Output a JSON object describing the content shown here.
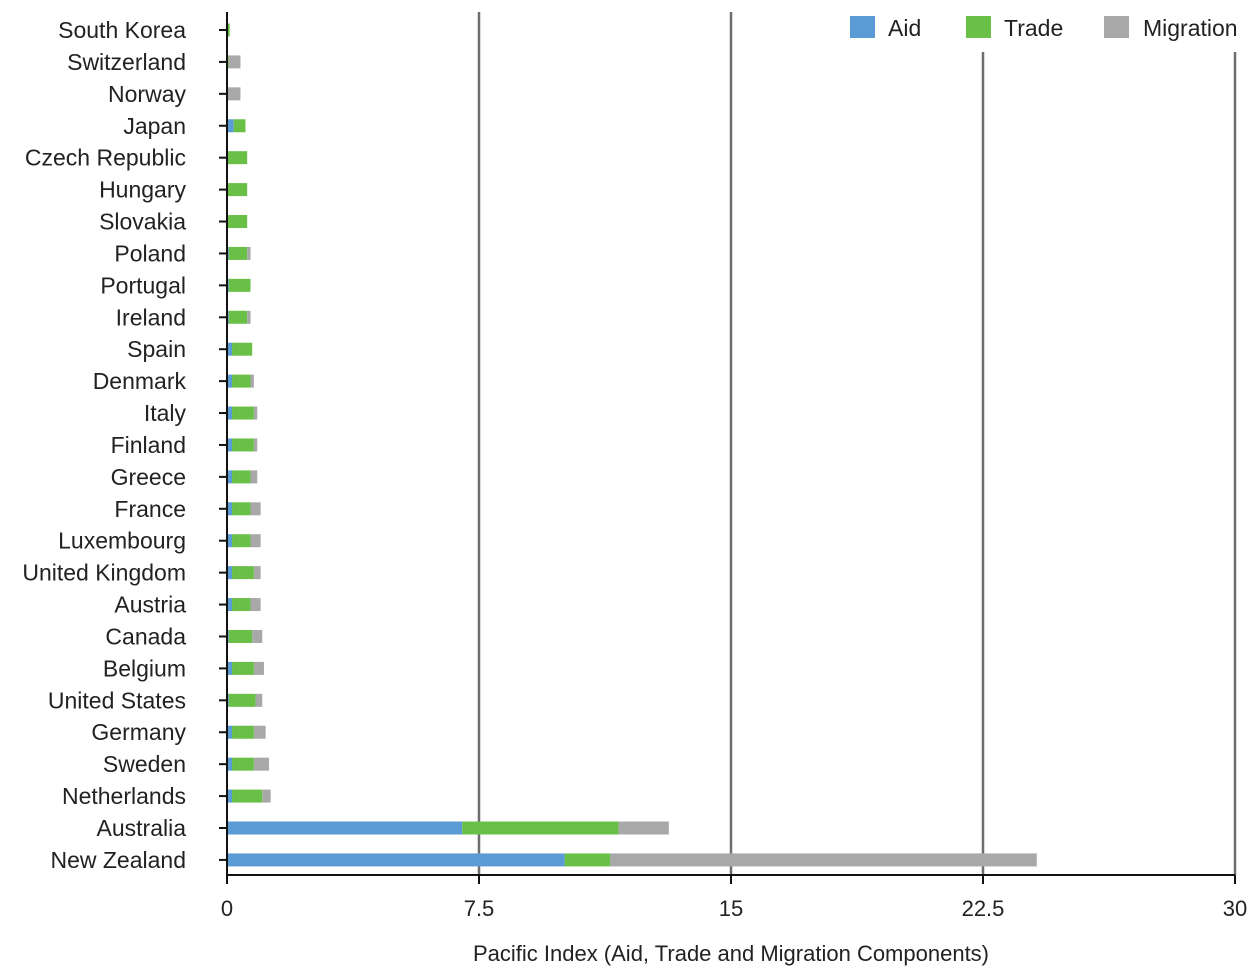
{
  "chart_data": {
    "type": "bar",
    "orientation": "horizontal",
    "stacked": true,
    "title": "",
    "xlabel": "Pacific Index (Aid, Trade and Migration Components)",
    "ylabel": "",
    "xlim": [
      0,
      30
    ],
    "xticks": [
      "0",
      "7.5",
      "15",
      "22.5",
      "30"
    ],
    "grid": "vertical",
    "legend_position": "top-right",
    "categories": [
      "South Korea",
      "Switzerland",
      "Norway",
      "Japan",
      "Czech Republic",
      "Hungary",
      "Slovakia",
      "Poland",
      "Portugal",
      "Ireland",
      "Spain",
      "Denmark",
      "Italy",
      "Finland",
      "Greece",
      "France",
      "Luxembourg",
      "United Kingdom",
      "Austria",
      "Canada",
      "Belgium",
      "United States",
      "Germany",
      "Sweden",
      "Netherlands",
      "Australia",
      "New Zealand"
    ],
    "series": [
      {
        "name": "Aid",
        "color": "#5b9bd5",
        "values": [
          0.0,
          0.0,
          0.0,
          0.2,
          0.0,
          0.0,
          0.0,
          0.05,
          0.05,
          0.05,
          0.15,
          0.15,
          0.15,
          0.15,
          0.15,
          0.15,
          0.15,
          0.15,
          0.15,
          0.05,
          0.15,
          0.05,
          0.15,
          0.15,
          0.15,
          7.0,
          10.05
        ]
      },
      {
        "name": "Trade",
        "color": "#6abf47",
        "values": [
          0.08,
          0.05,
          0.0,
          0.35,
          0.6,
          0.6,
          0.6,
          0.55,
          0.65,
          0.55,
          0.6,
          0.55,
          0.65,
          0.65,
          0.55,
          0.55,
          0.55,
          0.65,
          0.55,
          0.7,
          0.65,
          0.8,
          0.65,
          0.65,
          0.9,
          4.65,
          1.35
        ]
      },
      {
        "name": "Migration",
        "color": "#a8a8a8",
        "values": [
          0.0,
          0.35,
          0.4,
          0.0,
          0.0,
          0.0,
          0.0,
          0.1,
          0.0,
          0.1,
          0.0,
          0.1,
          0.1,
          0.1,
          0.2,
          0.3,
          0.3,
          0.2,
          0.3,
          0.3,
          0.3,
          0.2,
          0.35,
          0.45,
          0.25,
          1.5,
          12.7
        ]
      }
    ]
  }
}
